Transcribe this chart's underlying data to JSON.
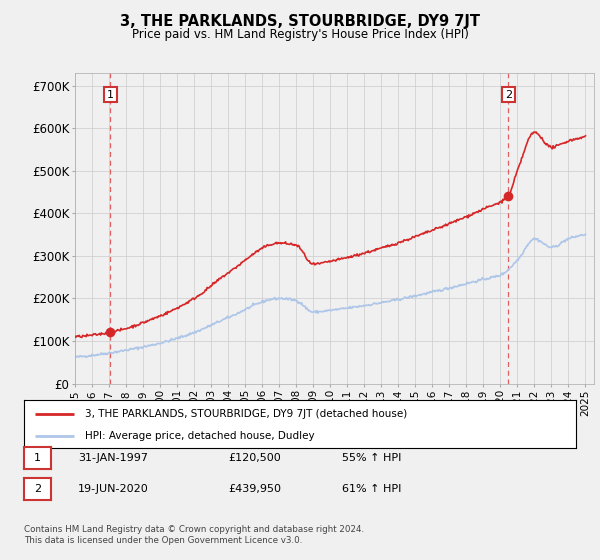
{
  "title": "3, THE PARKLANDS, STOURBRIDGE, DY9 7JT",
  "subtitle": "Price paid vs. HM Land Registry's House Price Index (HPI)",
  "ylabel_ticks": [
    "£0",
    "£100K",
    "£200K",
    "£300K",
    "£400K",
    "£500K",
    "£600K",
    "£700K"
  ],
  "ytick_values": [
    0,
    100000,
    200000,
    300000,
    400000,
    500000,
    600000,
    700000
  ],
  "ylim": [
    0,
    730000
  ],
  "xlim_start": 1995.0,
  "xlim_end": 2025.5,
  "sale1_x": 1997.083,
  "sale1_y": 120500,
  "sale1_label": "1",
  "sale2_x": 2020.46,
  "sale2_y": 439950,
  "sale2_label": "2",
  "legend_entry1": "3, THE PARKLANDS, STOURBRIDGE, DY9 7JT (detached house)",
  "legend_entry2": "HPI: Average price, detached house, Dudley",
  "table_row1": [
    "1",
    "31-JAN-1997",
    "£120,500",
    "55% ↑ HPI"
  ],
  "table_row2": [
    "2",
    "19-JUN-2020",
    "£439,950",
    "61% ↑ HPI"
  ],
  "footer": "Contains HM Land Registry data © Crown copyright and database right 2024.\nThis data is licensed under the Open Government Licence v3.0.",
  "hpi_color": "#aec6e8",
  "price_color": "#d62728",
  "sale_marker_color": "#d62728",
  "background_color": "#f0f0f0",
  "grid_color": "#cccccc",
  "vline_color": "#e06060",
  "hpi_waypoints_x": [
    1995,
    1997,
    2000,
    2002,
    2004,
    2007,
    2008,
    2009,
    2010,
    2013,
    2016,
    2019,
    2020,
    2021,
    2022,
    2023,
    2024,
    2025
  ],
  "hpi_waypoints_y": [
    62000,
    72000,
    95000,
    120000,
    155000,
    200000,
    195000,
    168000,
    172000,
    190000,
    215000,
    245000,
    255000,
    290000,
    340000,
    320000,
    340000,
    350000
  ],
  "price_waypoints_x": [
    1995,
    1997.083,
    2000,
    2002,
    2004,
    2007,
    2008,
    2009,
    2010,
    2013,
    2016,
    2019,
    2020.46,
    2021,
    2022,
    2023,
    2024,
    2025
  ],
  "price_waypoints_y": [
    110000,
    120500,
    159000,
    200000,
    260000,
    330000,
    325000,
    280000,
    287000,
    318000,
    360000,
    410000,
    439950,
    500000,
    590000,
    555000,
    570000,
    580000
  ]
}
